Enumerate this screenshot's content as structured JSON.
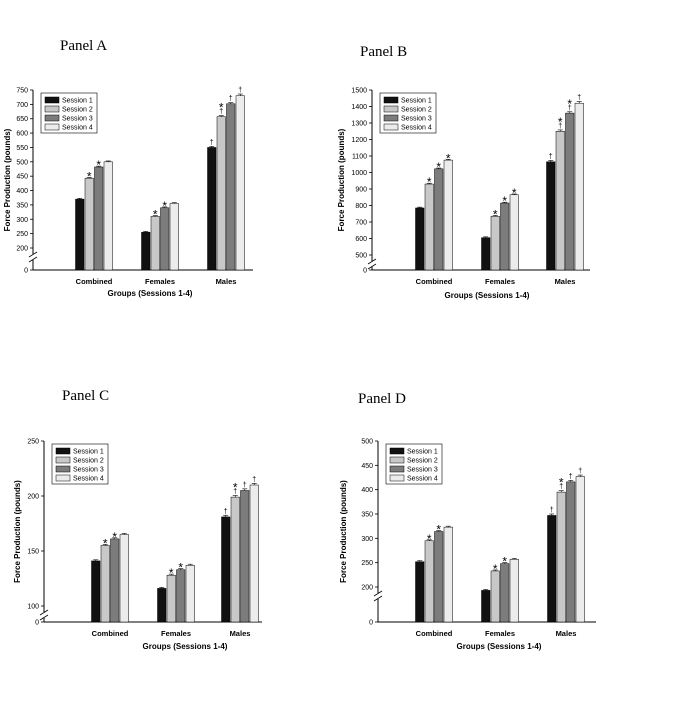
{
  "colors": {
    "session_1": "#111111",
    "session_2": "#c8c8c8",
    "session_3": "#7c7c7c",
    "session_4": "#ececec",
    "axis": "#000000"
  },
  "chart_data": [
    {
      "panel": "Panel A",
      "type": "bar",
      "title": "Panel A",
      "xlabel": "Groups (Sessions 1-4)",
      "ylabel": "Force Production (pounds)",
      "categories": [
        "Combined",
        "Females",
        "Males"
      ],
      "yticks": [
        0,
        200,
        250,
        300,
        350,
        400,
        450,
        500,
        550,
        600,
        650,
        700,
        750
      ],
      "ylim": [
        200,
        750
      ],
      "axis_break": true,
      "legend": "top-left",
      "series": [
        {
          "name": "Session 1",
          "values": [
            370,
            255,
            550
          ],
          "errors": [
            3,
            3,
            4
          ]
        },
        {
          "name": "Session 2",
          "values": [
            443,
            310,
            657
          ],
          "errors": [
            3,
            3,
            4
          ]
        },
        {
          "name": "Session 3",
          "values": [
            482,
            340,
            702
          ],
          "errors": [
            3,
            3,
            4
          ]
        },
        {
          "name": "Session 4",
          "values": [
            500,
            355,
            730
          ],
          "errors": [
            3,
            3,
            6
          ]
        }
      ],
      "annotations": [
        {
          "category": "Combined",
          "series": "Session 2",
          "text": "*"
        },
        {
          "category": "Combined",
          "series": "Session 3",
          "text": "*"
        },
        {
          "category": "Females",
          "series": "Session 2",
          "text": "*"
        },
        {
          "category": "Females",
          "series": "Session 3",
          "text": "*"
        },
        {
          "category": "Males",
          "series": "Session 1",
          "text": "†"
        },
        {
          "category": "Males",
          "series": "Session 2",
          "text": "*†"
        },
        {
          "category": "Males",
          "series": "Session 3",
          "text": "†"
        },
        {
          "category": "Males",
          "series": "Session 4",
          "text": "†"
        }
      ]
    },
    {
      "panel": "Panel B",
      "type": "bar",
      "title": "Panel B",
      "xlabel": "Groups (Sessions 1-4)",
      "ylabel": "Force Production (pounds)",
      "categories": [
        "Combined",
        "Females",
        "Males"
      ],
      "yticks": [
        0,
        500,
        600,
        700,
        800,
        900,
        1000,
        1100,
        1200,
        1300,
        1400,
        1500
      ],
      "ylim": [
        500,
        1500
      ],
      "axis_break": true,
      "legend": "top-left",
      "series": [
        {
          "name": "Session 1",
          "values": [
            785,
            605,
            1065
          ],
          "errors": [
            5,
            5,
            8
          ]
        },
        {
          "name": "Session 2",
          "values": [
            930,
            735,
            1250
          ],
          "errors": [
            5,
            5,
            8
          ]
        },
        {
          "name": "Session 3",
          "values": [
            1022,
            815,
            1360
          ],
          "errors": [
            5,
            5,
            8
          ]
        },
        {
          "name": "Session 4",
          "values": [
            1075,
            865,
            1420
          ],
          "errors": [
            5,
            5,
            10
          ]
        }
      ],
      "annotations": [
        {
          "category": "Combined",
          "series": "Session 2",
          "text": "*"
        },
        {
          "category": "Combined",
          "series": "Session 3",
          "text": "*"
        },
        {
          "category": "Combined",
          "series": "Session 4",
          "text": "*"
        },
        {
          "category": "Females",
          "series": "Session 2",
          "text": "*"
        },
        {
          "category": "Females",
          "series": "Session 3",
          "text": "*"
        },
        {
          "category": "Females",
          "series": "Session 4",
          "text": "*"
        },
        {
          "category": "Males",
          "series": "Session 1",
          "text": "†"
        },
        {
          "category": "Males",
          "series": "Session 2",
          "text": "*†"
        },
        {
          "category": "Males",
          "series": "Session 3",
          "text": "*†"
        },
        {
          "category": "Males",
          "series": "Session 4",
          "text": "†"
        }
      ]
    },
    {
      "panel": "Panel C",
      "type": "bar",
      "title": "Panel C",
      "xlabel": "Groups (Sessions 1-4)",
      "ylabel": "Force Production (pounds)",
      "categories": [
        "Combined",
        "Females",
        "Males"
      ],
      "yticks": [
        0,
        100,
        150,
        200,
        250
      ],
      "ylim": [
        100,
        250
      ],
      "axis_break": true,
      "legend": "top-left",
      "series": [
        {
          "name": "Session 1",
          "values": [
            141,
            116,
            181
          ],
          "errors": [
            1,
            1,
            1.5
          ]
        },
        {
          "name": "Session 2",
          "values": [
            155,
            128,
            199
          ],
          "errors": [
            1,
            1,
            1.5
          ]
        },
        {
          "name": "Session 3",
          "values": [
            161,
            133,
            205
          ],
          "errors": [
            1,
            1,
            1.5
          ]
        },
        {
          "name": "Session 4",
          "values": [
            165,
            137,
            210
          ],
          "errors": [
            1,
            1,
            1.5
          ]
        }
      ],
      "annotations": [
        {
          "category": "Combined",
          "series": "Session 2",
          "text": "*"
        },
        {
          "category": "Combined",
          "series": "Session 3",
          "text": "*"
        },
        {
          "category": "Females",
          "series": "Session 2",
          "text": "*"
        },
        {
          "category": "Females",
          "series": "Session 3",
          "text": "*"
        },
        {
          "category": "Males",
          "series": "Session 1",
          "text": "†"
        },
        {
          "category": "Males",
          "series": "Session 2",
          "text": "*†"
        },
        {
          "category": "Males",
          "series": "Session 3",
          "text": "†"
        },
        {
          "category": "Males",
          "series": "Session 4",
          "text": "†"
        }
      ]
    },
    {
      "panel": "Panel D",
      "type": "bar",
      "title": "Panel D",
      "xlabel": "Groups (Sessions 1-4)",
      "ylabel": "Force Production (pounds)",
      "categories": [
        "Combined",
        "Females",
        "Males"
      ],
      "yticks": [
        0,
        200,
        250,
        300,
        350,
        400,
        450,
        500
      ],
      "ylim": [
        200,
        500
      ],
      "axis_break": true,
      "legend": "top-left",
      "series": [
        {
          "name": "Session 1",
          "values": [
            252,
            193,
            347
          ],
          "errors": [
            2,
            2,
            3
          ]
        },
        {
          "name": "Session 2",
          "values": [
            295,
            233,
            395
          ],
          "errors": [
            2,
            2,
            3
          ]
        },
        {
          "name": "Session 3",
          "values": [
            314,
            248,
            416
          ],
          "errors": [
            2,
            2,
            3
          ]
        },
        {
          "name": "Session 4",
          "values": [
            323,
            257,
            427
          ],
          "errors": [
            2,
            2,
            3
          ]
        }
      ],
      "annotations": [
        {
          "category": "Combined",
          "series": "Session 2",
          "text": "*"
        },
        {
          "category": "Combined",
          "series": "Session 3",
          "text": "*"
        },
        {
          "category": "Females",
          "series": "Session 2",
          "text": "*"
        },
        {
          "category": "Females",
          "series": "Session 3",
          "text": "*"
        },
        {
          "category": "Males",
          "series": "Session 1",
          "text": "†"
        },
        {
          "category": "Males",
          "series": "Session 2",
          "text": "*†"
        },
        {
          "category": "Males",
          "series": "Session 3",
          "text": "†"
        },
        {
          "category": "Males",
          "series": "Session 4",
          "text": "†"
        }
      ]
    }
  ]
}
